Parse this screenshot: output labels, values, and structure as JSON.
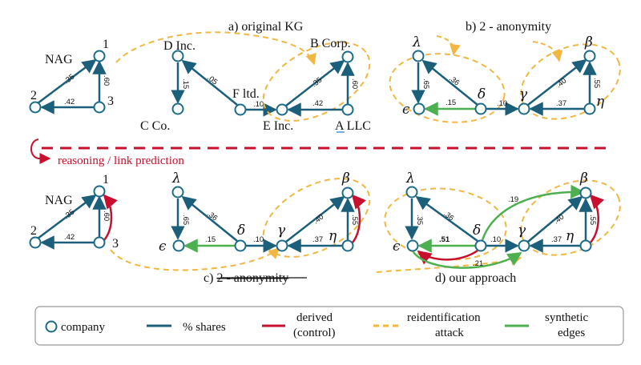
{
  "colors": {
    "node": "#1c6b8a",
    "share": "#1c5f7a",
    "derived": "#c8102e",
    "attack": "#f2b643",
    "synthetic": "#4caf50",
    "reason": "#c8102e"
  },
  "panels": {
    "a": "a) original KG",
    "b": "b) 2 - anonymity",
    "c_prefix": "c) ",
    "c_struck": "2 - anonymity",
    "d": "d) our approach"
  },
  "reasoning_label": "reasoning / link prediction",
  "legend": {
    "company": "company",
    "shares": "% shares",
    "derived_line1": "derived",
    "derived_line2": "(control)",
    "attack_line1": "reidentification",
    "attack_line2": "attack",
    "synthetic_line1": "synthetic",
    "synthetic_line2": "edges"
  },
  "labels": {
    "nag": "NAG",
    "one": "1",
    "two": "2",
    "three": "3",
    "d_inc": "D Inc.",
    "c_co": "C Co.",
    "f_ltd": "F ltd.",
    "e_inc": "E Inc.",
    "b_corp": "B Corp.",
    "a_llc": "A LLC",
    "lambda": "λ",
    "epsilon": "ϵ",
    "delta": "δ",
    "gamma": "γ",
    "beta": "β",
    "eta": "η"
  },
  "weights": {
    "w35": ".35",
    "w42": ".42",
    "w60": ".60",
    "w15": ".15",
    "w05": ".05",
    "w10": ".10",
    "w65": ".65",
    "w36": ".36",
    "w40": ".40",
    "w37": ".37",
    "w55": ".55",
    "w51": ".51",
    "w19": ".19",
    "w21": ".21"
  }
}
